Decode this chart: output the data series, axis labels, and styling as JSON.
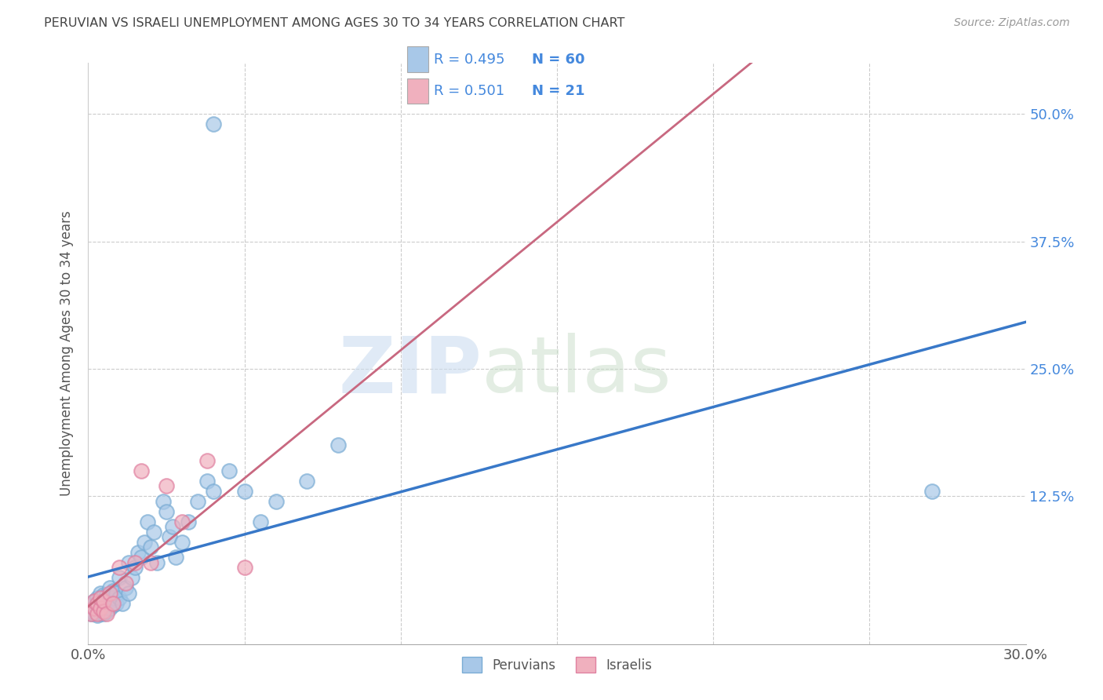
{
  "title": "PERUVIAN VS ISRAELI UNEMPLOYMENT AMONG AGES 30 TO 34 YEARS CORRELATION CHART",
  "source": "Source: ZipAtlas.com",
  "ylabel": "Unemployment Among Ages 30 to 34 years",
  "xlim": [
    0.0,
    0.3
  ],
  "ylim": [
    -0.02,
    0.55
  ],
  "x_ticks": [
    0.0,
    0.05,
    0.1,
    0.15,
    0.2,
    0.25,
    0.3
  ],
  "y_ticks": [
    0.0,
    0.125,
    0.25,
    0.375,
    0.5
  ],
  "y_tick_labels": [
    "",
    "12.5%",
    "25.0%",
    "37.5%",
    "50.0%"
  ],
  "peruvian_color": "#a8c8e8",
  "israeli_color": "#f0b0be",
  "peruvian_edge_color": "#7aacd4",
  "israeli_edge_color": "#e080a0",
  "peruvian_line_color": "#3878c8",
  "israeli_line_color": "#c86880",
  "legend_text_color": "#4488dd",
  "peruvian_R": 0.495,
  "peruvian_N": 60,
  "israeli_R": 0.501,
  "israeli_N": 21,
  "peruvian_x": [
    0.001,
    0.001,
    0.002,
    0.002,
    0.002,
    0.003,
    0.003,
    0.003,
    0.004,
    0.004,
    0.004,
    0.004,
    0.005,
    0.005,
    0.005,
    0.005,
    0.006,
    0.006,
    0.006,
    0.007,
    0.007,
    0.007,
    0.008,
    0.008,
    0.008,
    0.009,
    0.009,
    0.01,
    0.01,
    0.011,
    0.012,
    0.013,
    0.013,
    0.014,
    0.015,
    0.016,
    0.017,
    0.018,
    0.019,
    0.02,
    0.021,
    0.022,
    0.024,
    0.025,
    0.026,
    0.027,
    0.028,
    0.03,
    0.032,
    0.035,
    0.038,
    0.04,
    0.045,
    0.05,
    0.055,
    0.06,
    0.07,
    0.08,
    0.27,
    0.04
  ],
  "peruvian_y": [
    0.01,
    0.018,
    0.01,
    0.015,
    0.022,
    0.008,
    0.015,
    0.025,
    0.01,
    0.018,
    0.025,
    0.03,
    0.01,
    0.015,
    0.02,
    0.028,
    0.012,
    0.02,
    0.028,
    0.015,
    0.022,
    0.035,
    0.018,
    0.025,
    0.032,
    0.02,
    0.03,
    0.025,
    0.045,
    0.02,
    0.035,
    0.06,
    0.03,
    0.045,
    0.055,
    0.07,
    0.065,
    0.08,
    0.1,
    0.075,
    0.09,
    0.06,
    0.12,
    0.11,
    0.085,
    0.095,
    0.065,
    0.08,
    0.1,
    0.12,
    0.14,
    0.13,
    0.15,
    0.13,
    0.1,
    0.12,
    0.14,
    0.175,
    0.13,
    0.49
  ],
  "israeli_x": [
    0.001,
    0.002,
    0.002,
    0.003,
    0.003,
    0.004,
    0.004,
    0.005,
    0.005,
    0.006,
    0.007,
    0.008,
    0.01,
    0.012,
    0.015,
    0.017,
    0.02,
    0.025,
    0.03,
    0.038,
    0.05
  ],
  "israeli_y": [
    0.01,
    0.015,
    0.022,
    0.01,
    0.02,
    0.015,
    0.025,
    0.012,
    0.022,
    0.01,
    0.03,
    0.02,
    0.055,
    0.04,
    0.06,
    0.15,
    0.06,
    0.135,
    0.1,
    0.16,
    0.055
  ]
}
